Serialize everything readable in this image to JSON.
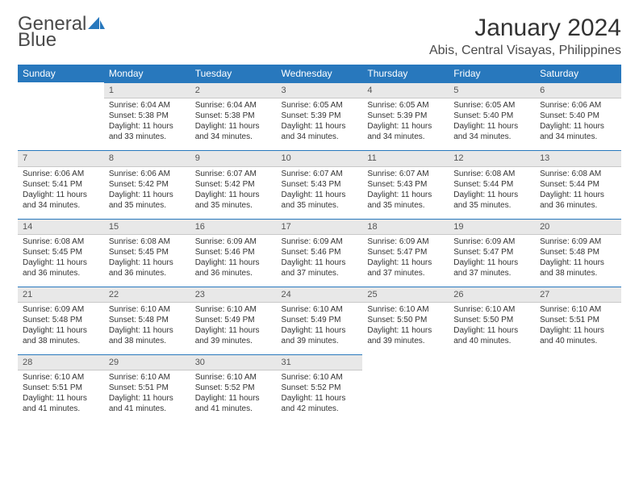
{
  "logo": {
    "text1": "General",
    "text2": "Blue",
    "color_gray": "#4a4a4a",
    "color_blue": "#2878bd"
  },
  "title": "January 2024",
  "location": "Abis, Central Visayas, Philippines",
  "header_bg": "#2878bd",
  "header_fg": "#ffffff",
  "daynum_bg": "#e8e8e8",
  "daynum_border_top": "#2878bd",
  "body_fontsize": 10,
  "day_names": [
    "Sunday",
    "Monday",
    "Tuesday",
    "Wednesday",
    "Thursday",
    "Friday",
    "Saturday"
  ],
  "start_offset": 1,
  "days": [
    {
      "n": 1,
      "sunrise": "6:04 AM",
      "sunset": "5:38 PM",
      "daylight": "11 hours and 33 minutes."
    },
    {
      "n": 2,
      "sunrise": "6:04 AM",
      "sunset": "5:38 PM",
      "daylight": "11 hours and 34 minutes."
    },
    {
      "n": 3,
      "sunrise": "6:05 AM",
      "sunset": "5:39 PM",
      "daylight": "11 hours and 34 minutes."
    },
    {
      "n": 4,
      "sunrise": "6:05 AM",
      "sunset": "5:39 PM",
      "daylight": "11 hours and 34 minutes."
    },
    {
      "n": 5,
      "sunrise": "6:05 AM",
      "sunset": "5:40 PM",
      "daylight": "11 hours and 34 minutes."
    },
    {
      "n": 6,
      "sunrise": "6:06 AM",
      "sunset": "5:40 PM",
      "daylight": "11 hours and 34 minutes."
    },
    {
      "n": 7,
      "sunrise": "6:06 AM",
      "sunset": "5:41 PM",
      "daylight": "11 hours and 34 minutes."
    },
    {
      "n": 8,
      "sunrise": "6:06 AM",
      "sunset": "5:42 PM",
      "daylight": "11 hours and 35 minutes."
    },
    {
      "n": 9,
      "sunrise": "6:07 AM",
      "sunset": "5:42 PM",
      "daylight": "11 hours and 35 minutes."
    },
    {
      "n": 10,
      "sunrise": "6:07 AM",
      "sunset": "5:43 PM",
      "daylight": "11 hours and 35 minutes."
    },
    {
      "n": 11,
      "sunrise": "6:07 AM",
      "sunset": "5:43 PM",
      "daylight": "11 hours and 35 minutes."
    },
    {
      "n": 12,
      "sunrise": "6:08 AM",
      "sunset": "5:44 PM",
      "daylight": "11 hours and 35 minutes."
    },
    {
      "n": 13,
      "sunrise": "6:08 AM",
      "sunset": "5:44 PM",
      "daylight": "11 hours and 36 minutes."
    },
    {
      "n": 14,
      "sunrise": "6:08 AM",
      "sunset": "5:45 PM",
      "daylight": "11 hours and 36 minutes."
    },
    {
      "n": 15,
      "sunrise": "6:08 AM",
      "sunset": "5:45 PM",
      "daylight": "11 hours and 36 minutes."
    },
    {
      "n": 16,
      "sunrise": "6:09 AM",
      "sunset": "5:46 PM",
      "daylight": "11 hours and 36 minutes."
    },
    {
      "n": 17,
      "sunrise": "6:09 AM",
      "sunset": "5:46 PM",
      "daylight": "11 hours and 37 minutes."
    },
    {
      "n": 18,
      "sunrise": "6:09 AM",
      "sunset": "5:47 PM",
      "daylight": "11 hours and 37 minutes."
    },
    {
      "n": 19,
      "sunrise": "6:09 AM",
      "sunset": "5:47 PM",
      "daylight": "11 hours and 37 minutes."
    },
    {
      "n": 20,
      "sunrise": "6:09 AM",
      "sunset": "5:48 PM",
      "daylight": "11 hours and 38 minutes."
    },
    {
      "n": 21,
      "sunrise": "6:09 AM",
      "sunset": "5:48 PM",
      "daylight": "11 hours and 38 minutes."
    },
    {
      "n": 22,
      "sunrise": "6:10 AM",
      "sunset": "5:48 PM",
      "daylight": "11 hours and 38 minutes."
    },
    {
      "n": 23,
      "sunrise": "6:10 AM",
      "sunset": "5:49 PM",
      "daylight": "11 hours and 39 minutes."
    },
    {
      "n": 24,
      "sunrise": "6:10 AM",
      "sunset": "5:49 PM",
      "daylight": "11 hours and 39 minutes."
    },
    {
      "n": 25,
      "sunrise": "6:10 AM",
      "sunset": "5:50 PM",
      "daylight": "11 hours and 39 minutes."
    },
    {
      "n": 26,
      "sunrise": "6:10 AM",
      "sunset": "5:50 PM",
      "daylight": "11 hours and 40 minutes."
    },
    {
      "n": 27,
      "sunrise": "6:10 AM",
      "sunset": "5:51 PM",
      "daylight": "11 hours and 40 minutes."
    },
    {
      "n": 28,
      "sunrise": "6:10 AM",
      "sunset": "5:51 PM",
      "daylight": "11 hours and 41 minutes."
    },
    {
      "n": 29,
      "sunrise": "6:10 AM",
      "sunset": "5:51 PM",
      "daylight": "11 hours and 41 minutes."
    },
    {
      "n": 30,
      "sunrise": "6:10 AM",
      "sunset": "5:52 PM",
      "daylight": "11 hours and 41 minutes."
    },
    {
      "n": 31,
      "sunrise": "6:10 AM",
      "sunset": "5:52 PM",
      "daylight": "11 hours and 42 minutes."
    }
  ],
  "labels": {
    "sunrise": "Sunrise: ",
    "sunset": "Sunset: ",
    "daylight": "Daylight: "
  }
}
